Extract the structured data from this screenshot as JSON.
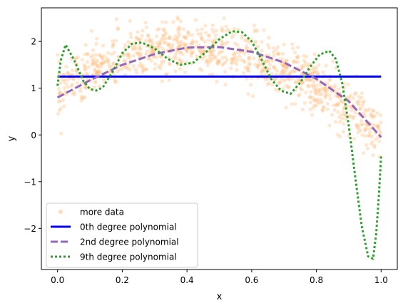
{
  "chart_data": {
    "type": "scatter",
    "title": "",
    "xlabel": "x",
    "ylabel": "y",
    "xlim": [
      -0.05,
      1.05
    ],
    "ylim": [
      -2.88,
      2.72
    ],
    "xticks": [
      0.0,
      0.2,
      0.4,
      0.6,
      0.8,
      1.0
    ],
    "xtick_labels": [
      "0.0",
      "0.2",
      "0.4",
      "0.6",
      "0.8",
      "1.0"
    ],
    "yticks": [
      -2,
      -1,
      0,
      1,
      2
    ],
    "ytick_labels": [
      "−2",
      "−1",
      "0",
      "1",
      "2"
    ],
    "grid": false,
    "legend_position": "lower-left",
    "scatter": {
      "name": "more data",
      "color": "#ffbb78",
      "alpha": 0.35,
      "trend": {
        "x": [
          0.0,
          0.05,
          0.1,
          0.15,
          0.2,
          0.25,
          0.3,
          0.35,
          0.4,
          0.45,
          0.5,
          0.55,
          0.6,
          0.65,
          0.7,
          0.75,
          0.8,
          0.85,
          0.9,
          0.95,
          1.0
        ],
        "y": [
          0.95,
          1.2,
          1.35,
          1.5,
          1.65,
          1.75,
          1.8,
          1.85,
          1.85,
          1.85,
          1.82,
          1.75,
          1.65,
          1.55,
          1.4,
          1.25,
          1.05,
          0.8,
          0.6,
          0.3,
          0.1
        ]
      },
      "spread": 0.28,
      "count": 1000
    },
    "series": [
      {
        "name": "0th degree polynomial",
        "color": "#0000ff",
        "style": "solid",
        "x": [
          0.0,
          1.0
        ],
        "y": [
          1.25,
          1.25
        ]
      },
      {
        "name": "2nd degree polynomial",
        "color": "#9467bd",
        "style": "dashed",
        "x": [
          0.0,
          0.1,
          0.2,
          0.3,
          0.4,
          0.5,
          0.6,
          0.7,
          0.8,
          0.9,
          1.0
        ],
        "y": [
          0.8,
          1.17,
          1.5,
          1.73,
          1.87,
          1.88,
          1.78,
          1.55,
          1.2,
          0.72,
          -0.05
        ]
      },
      {
        "name": "9th degree polynomial",
        "color": "#2ca02c",
        "style": "dotted",
        "x": [
          0.0,
          0.01,
          0.025,
          0.05,
          0.08,
          0.1,
          0.12,
          0.14,
          0.17,
          0.2,
          0.23,
          0.26,
          0.3,
          0.34,
          0.38,
          0.42,
          0.46,
          0.5,
          0.54,
          0.57,
          0.6,
          0.63,
          0.66,
          0.69,
          0.72,
          0.75,
          0.78,
          0.81,
          0.84,
          0.86,
          0.88,
          0.9,
          0.92,
          0.94,
          0.96,
          0.975,
          0.985,
          0.993,
          1.0
        ],
        "y": [
          1.05,
          1.6,
          1.93,
          1.62,
          1.15,
          0.98,
          0.95,
          1.02,
          1.35,
          1.75,
          1.95,
          1.98,
          1.85,
          1.63,
          1.5,
          1.55,
          1.78,
          2.05,
          2.22,
          2.2,
          2.0,
          1.62,
          1.2,
          0.95,
          0.88,
          1.12,
          1.45,
          1.72,
          1.8,
          1.62,
          1.1,
          0.2,
          -0.9,
          -1.95,
          -2.6,
          -2.65,
          -2.1,
          -1.3,
          -0.45
        ]
      }
    ]
  }
}
